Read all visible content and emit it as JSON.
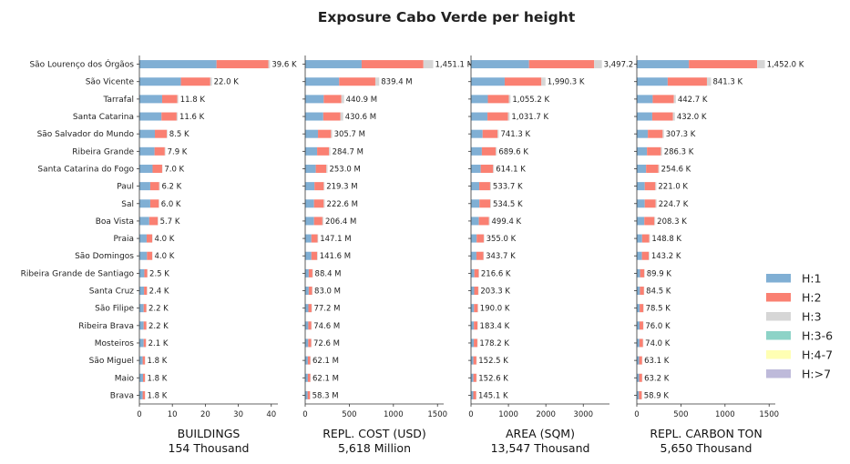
{
  "title": "Exposure Cabo Verde per height",
  "colors": {
    "H:1": "#80afd4",
    "H:2": "#fa8072",
    "H:3": "#d6d6d6",
    "H:3-6": "#8dd3c7",
    "H:4-7": "#ffffb3",
    "H:>7": "#bebada"
  },
  "legend": [
    "H:1",
    "H:2",
    "H:3",
    "H:3-6",
    "H:4-7",
    "H:>7"
  ],
  "chart_data": {
    "type": "bar",
    "orientation": "horizontal",
    "stacked": true,
    "categories": [
      "São Lourenço dos Órgãos",
      "São Vicente",
      "Tarrafal",
      "Santa Catarina",
      "São Salvador do Mundo",
      "Ribeira Grande",
      "Santa Catarina do Fogo",
      "Paul",
      "Sal",
      "Boa Vista",
      "Praia",
      "São Domingos",
      "Ribeira Grande de Santiago",
      "Santa Cruz",
      "São Filipe",
      "Ribeira Brava",
      "Mosteiros",
      "São Miguel",
      "Maio",
      "Brava"
    ],
    "panels": [
      {
        "xlabel": "BUILDINGS",
        "subtitle": "154 Thousand",
        "xlim": [
          0,
          42
        ],
        "ticks": [
          0,
          10,
          20,
          30,
          40
        ],
        "series": [
          {
            "name": "H:1",
            "values": [
              23.4,
              12.6,
              6.9,
              6.7,
              4.7,
              4.6,
              4.0,
              3.3,
              3.3,
              3.0,
              2.2,
              2.3,
              1.5,
              1.4,
              1.3,
              1.3,
              1.3,
              1.0,
              1.1,
              1.0
            ]
          },
          {
            "name": "H:2",
            "values": [
              15.7,
              8.9,
              4.6,
              4.6,
              3.6,
              3.1,
              2.9,
              2.7,
              2.6,
              2.6,
              1.7,
              1.6,
              0.9,
              0.9,
              0.8,
              0.8,
              0.7,
              0.7,
              0.6,
              0.7
            ]
          },
          {
            "name": "H:3",
            "values": [
              0.5,
              0.5,
              0.3,
              0.3,
              0.2,
              0.2,
              0.1,
              0.2,
              0.1,
              0.1,
              0.1,
              0.1,
              0.1,
              0.1,
              0.1,
              0.1,
              0.1,
              0.1,
              0.1,
              0.1
            ]
          }
        ],
        "labels": [
          "39.6 K",
          "22.0 K",
          "11.8 K",
          "11.6 K",
          "8.5 K",
          "7.9 K",
          "7.0 K",
          "6.2 K",
          "6.0 K",
          "5.7 K",
          "4.0 K",
          "4.0 K",
          "2.5 K",
          "2.4 K",
          "2.2 K",
          "2.2 K",
          "2.1 K",
          "1.8 K",
          "1.8 K",
          "1.8 K"
        ]
      },
      {
        "xlabel": "REPL. COST (USD)",
        "subtitle": "5,618 Million",
        "xlim": [
          0,
          1570
        ],
        "ticks": [
          0,
          500,
          1000,
          1500
        ],
        "series": [
          {
            "name": "H:1",
            "values": [
              640,
              385,
              210,
              205,
              145,
              135,
              120,
              105,
              100,
              100,
              70,
              70,
              40,
              40,
              36,
              35,
              34,
              30,
              30,
              28
            ]
          },
          {
            "name": "H:2",
            "values": [
              700,
              410,
              200,
              195,
              148,
              135,
              120,
              105,
              110,
              95,
              70,
              65,
              42,
              38,
              36,
              35,
              34,
              28,
              28,
              27
            ]
          },
          {
            "name": "H:3",
            "values": [
              111.1,
              44.4,
              30.9,
              30.6,
              12.7,
              14.7,
              13.0,
              9.3,
              12.6,
              11.4,
              7.1,
              6.6,
              6.4,
              5.0,
              5.2,
              4.6,
              4.6,
              4.1,
              4.1,
              3.3
            ]
          }
        ],
        "labels": [
          "1,451.1 M",
          "839.4 M",
          "440.9 M",
          "430.6 M",
          "305.7 M",
          "284.7 M",
          "253.0 M",
          "219.3 M",
          "222.6 M",
          "206.4 M",
          "147.1 M",
          "141.6 M",
          "88.4 M",
          "83.0 M",
          "77.2 M",
          "74.6 M",
          "72.6 M",
          "62.1 M",
          "62.1 M",
          "58.3 M"
        ]
      },
      {
        "xlabel": "AREA (SQM)",
        "subtitle": "13,547 Thousand",
        "xlim": [
          0,
          3700
        ],
        "ticks": [
          0,
          1000,
          2000,
          3000
        ],
        "series": [
          {
            "name": "H:1",
            "values": [
              1550,
              900,
              450,
              440,
              310,
              290,
              260,
              220,
              225,
              210,
              150,
              145,
              90,
              85,
              80,
              77,
              75,
              64,
              64,
              61
            ]
          },
          {
            "name": "H:2",
            "values": [
              1740,
              980,
              560,
              550,
              400,
              370,
              330,
              290,
              290,
              270,
              190,
              185,
              115,
              108,
              100,
              97,
              94,
              80,
              80,
              76
            ]
          },
          {
            "name": "H:3",
            "values": [
              207.2,
              110.3,
              45.2,
              41.7,
              31.3,
              29.6,
              24.1,
              23.7,
              19.5,
              19.4,
              15.0,
              13.7,
              11.6,
              10.3,
              10.0,
              9.4,
              9.2,
              8.5,
              8.6,
              8.1
            ]
          }
        ],
        "labels": [
          "3,497.2 K",
          "1,990.3 K",
          "1,055.2 K",
          "1,031.7 K",
          "741.3 K",
          "689.6 K",
          "614.1 K",
          "533.7 K",
          "534.5 K",
          "499.4 K",
          "355.0 K",
          "343.7 K",
          "216.6 K",
          "203.3 K",
          "190.0 K",
          "183.4 K",
          "178.2 K",
          "152.5 K",
          "152.6 K",
          "145.1 K"
        ]
      },
      {
        "xlabel": "REPL. CARBON TON",
        "subtitle": "5,650 Thousand",
        "xlim": [
          0,
          1570
        ],
        "ticks": [
          0,
          500,
          1000,
          1500
        ],
        "series": [
          {
            "name": "H:1",
            "values": [
              590,
              350,
              180,
              175,
              125,
              115,
              105,
              90,
              90,
              85,
              60,
              58,
              37,
              35,
              32,
              31,
              30,
              26,
              26,
              24
            ]
          },
          {
            "name": "H:2",
            "values": [
              775,
              445,
              240,
              235,
              168,
              158,
              140,
              120,
              123,
              114,
              81,
              78,
              48,
              46,
              43,
              41,
              40,
              34,
              34,
              32
            ]
          },
          {
            "name": "H:3",
            "values": [
              87.0,
              46.3,
              22.7,
              22.0,
              14.3,
              13.3,
              9.6,
              11.0,
              11.7,
              9.3,
              7.8,
              7.2,
              4.9,
              3.5,
              3.5,
              4.0,
              4.0,
              3.1,
              3.2,
              2.9
            ]
          }
        ],
        "labels": [
          "1,452.0 K",
          "841.3 K",
          "442.7 K",
          "432.0 K",
          "307.3 K",
          "286.3 K",
          "254.6 K",
          "221.0 K",
          "224.7 K",
          "208.3 K",
          "148.8 K",
          "143.2 K",
          "89.9 K",
          "84.5 K",
          "78.5 K",
          "76.0 K",
          "74.0 K",
          "63.1 K",
          "63.2 K",
          "58.9 K"
        ]
      }
    ]
  }
}
